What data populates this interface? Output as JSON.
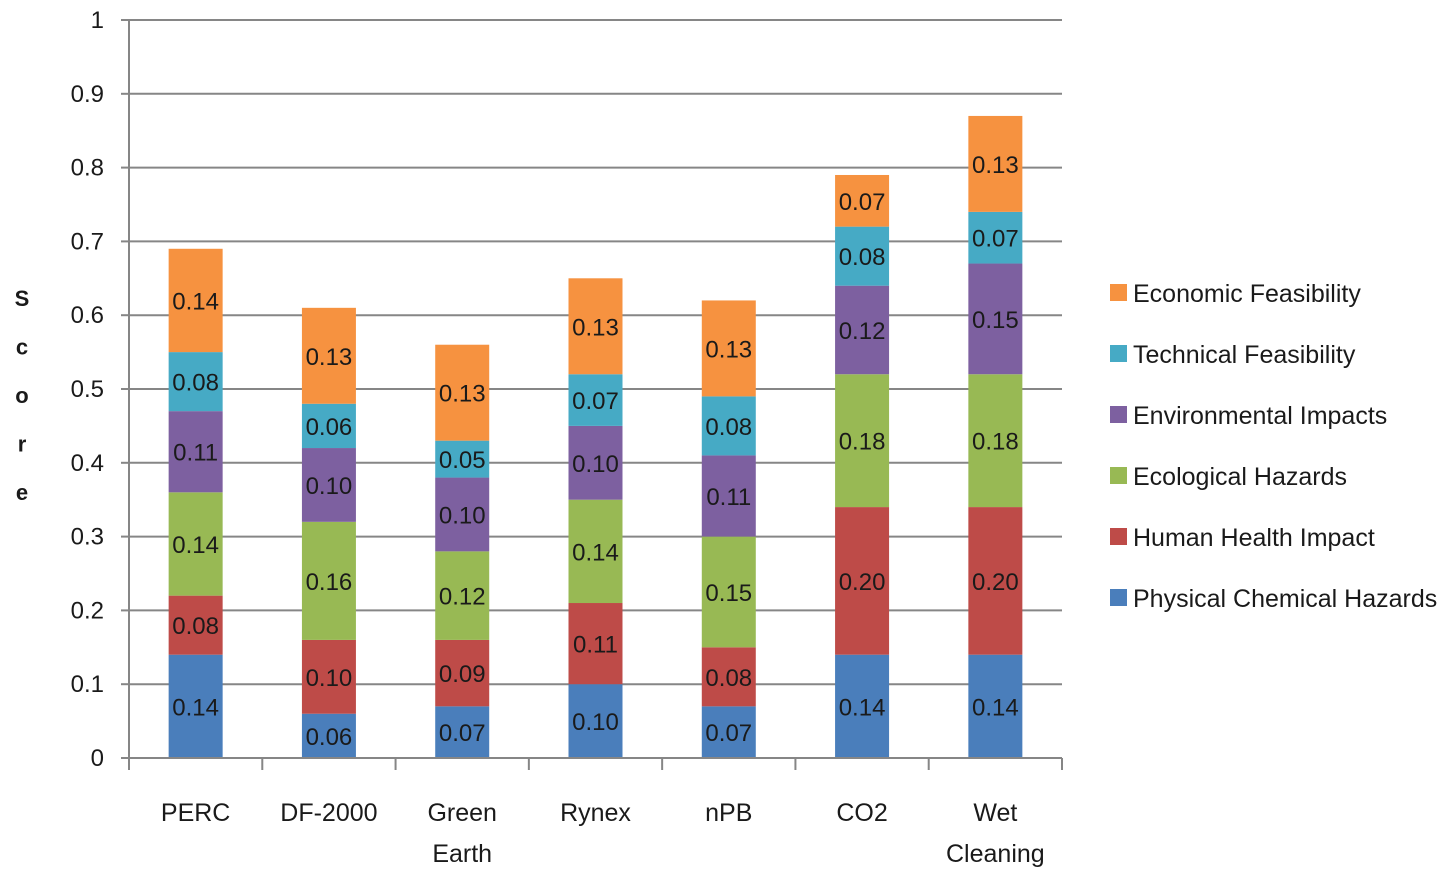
{
  "chart_data": {
    "type": "bar",
    "stacked": true,
    "title": "",
    "xlabel": "",
    "ylabel": "Score",
    "ylim": [
      0,
      1
    ],
    "yticks": [
      "0",
      "0.1",
      "0.2",
      "0.3",
      "0.4",
      "0.5",
      "0.6",
      "0.7",
      "0.8",
      "0.9",
      "1"
    ],
    "grid": "horizontal",
    "legend_position": "right",
    "categories": [
      [
        "PERC"
      ],
      [
        "DF-2000"
      ],
      [
        "Green",
        "Earth"
      ],
      [
        "Rynex"
      ],
      [
        "nPB"
      ],
      [
        "CO2"
      ],
      [
        "Wet",
        "Cleaning"
      ]
    ],
    "series": [
      {
        "name": "Physical Chemical Hazards",
        "color": "#4a7ebb",
        "values": [
          0.14,
          0.06,
          0.07,
          0.1,
          0.07,
          0.14,
          0.14
        ],
        "labels": [
          "0.14",
          "0.06",
          "0.07",
          "0.10",
          "0.07",
          "0.14",
          "0.14"
        ]
      },
      {
        "name": "Human Health Impact",
        "color": "#be4b48",
        "values": [
          0.08,
          0.1,
          0.09,
          0.11,
          0.08,
          0.2,
          0.2
        ],
        "labels": [
          "0.08",
          "0.10",
          "0.09",
          "0.11",
          "0.08",
          "0.20",
          "0.20"
        ]
      },
      {
        "name": "Ecological Hazards",
        "color": "#98b954",
        "values": [
          0.14,
          0.16,
          0.12,
          0.14,
          0.15,
          0.18,
          0.18
        ],
        "labels": [
          "0.14",
          "0.16",
          "0.12",
          "0.14",
          "0.15",
          "0.18",
          "0.18"
        ]
      },
      {
        "name": "Environmental Impacts",
        "color": "#7d60a0",
        "values": [
          0.11,
          0.1,
          0.1,
          0.1,
          0.11,
          0.12,
          0.15
        ],
        "labels": [
          "0.11",
          "0.10",
          "0.10",
          "0.10",
          "0.11",
          "0.12",
          "0.15"
        ]
      },
      {
        "name": "Technical Feasibility",
        "color": "#46aac5",
        "values": [
          0.08,
          0.06,
          0.05,
          0.07,
          0.08,
          0.08,
          0.07
        ],
        "labels": [
          "0.08",
          "0.06",
          "0.05",
          "0.07",
          "0.08",
          "0.08",
          "0.07"
        ]
      },
      {
        "name": "Economic Feasibility",
        "color": "#f69240",
        "values": [
          0.14,
          0.13,
          0.13,
          0.13,
          0.13,
          0.07,
          0.13
        ],
        "labels": [
          "0.14",
          "0.13",
          "0.13",
          "0.13",
          "0.13",
          "0.07",
          "0.13"
        ]
      }
    ],
    "gridline_color": "#868686",
    "axis_color": "#868686"
  }
}
